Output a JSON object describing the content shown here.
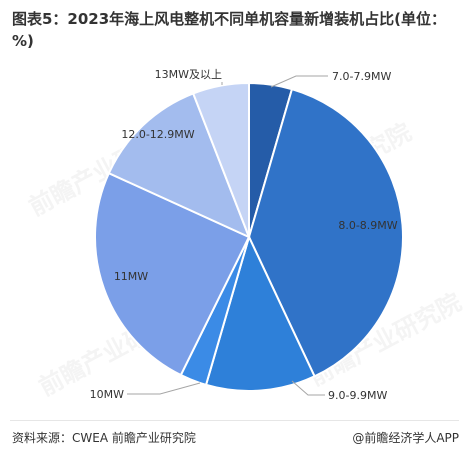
{
  "title": "图表5：2023年海上风电整机不同单机容量新增装机占比(单位：%)",
  "source": "资料来源：CWEA 前瞻产业研究院",
  "brand": "@前瞻经济学人APP",
  "watermark_text": "前瞻产业研究院",
  "colors": {
    "7.0-7.9MW": "#255ca8",
    "8.0-8.9MW": "#3073c8",
    "9.0-9.9MW": "#2e80d9",
    "10MW": "#3b8be6",
    "11MW": "#7b9fe8",
    "12.0-12.9MW": "#a3bcee",
    "13MW及以上": "#c5d4f5",
    "slice_border": "#ffffff",
    "leader": "#a6a6a6"
  },
  "chart_data": {
    "type": "pie",
    "title": "图表5：2023年海上风电整机不同单机容量新增装机占比(单位：%)",
    "start": "12 o'clock, clockwise",
    "slices": [
      {
        "label": "7.0-7.9MW",
        "value": 4.5
      },
      {
        "label": "8.0-8.9MW",
        "value": 38.5
      },
      {
        "label": "9.0-9.9MW",
        "value": 11.5
      },
      {
        "label": "10MW",
        "value": 2.8
      },
      {
        "label": "11MW",
        "value": 24.5
      },
      {
        "label": "12.0-12.9MW",
        "value": 12.3
      },
      {
        "label": "13MW及以上",
        "value": 5.9
      }
    ]
  }
}
